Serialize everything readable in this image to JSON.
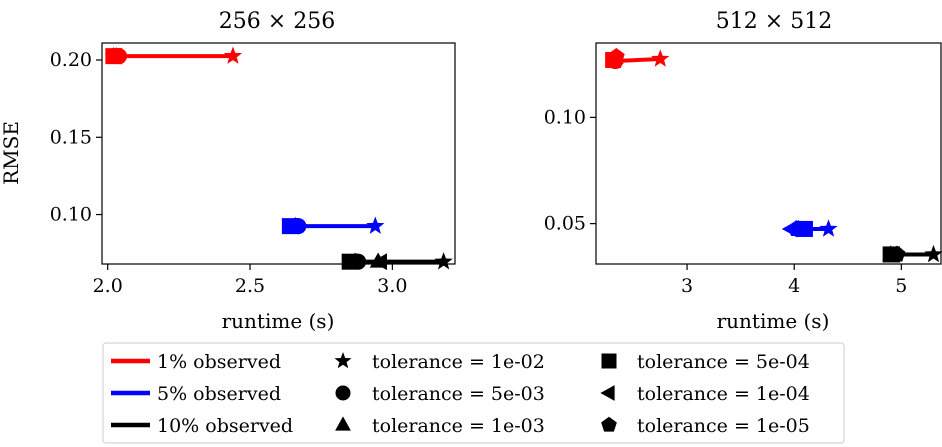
{
  "colors": {
    "1% observed": "#ff0000",
    "5% observed": "#0000ff",
    "10% observed": "#000000"
  },
  "chart_data": [
    {
      "type": "line",
      "title": "256 × 256",
      "xlabel": "runtime (s)",
      "ylabel": "RMSE",
      "xlim": [
        1.98,
        3.22
      ],
      "ylim": [
        0.068,
        0.211
      ],
      "xticks": [
        2.0,
        2.5,
        3.0
      ],
      "xtick_labels": [
        "2.0",
        "2.5",
        "3.0"
      ],
      "yticks": [
        0.1,
        0.15,
        0.2
      ],
      "ytick_labels": [
        "0.10",
        "0.15",
        "0.20"
      ],
      "grid": false,
      "series": [
        {
          "name": "1% observed",
          "points": [
            {
              "tolerance": "1e-02",
              "marker": "star",
              "x": 2.44,
              "y": 0.2025
            },
            {
              "tolerance": "5e-03",
              "marker": "circle",
              "x": 2.04,
              "y": 0.2025
            },
            {
              "tolerance": "1e-03",
              "marker": "triangle",
              "x": 2.03,
              "y": 0.2025
            },
            {
              "tolerance": "5e-04",
              "marker": "square",
              "x": 2.02,
              "y": 0.2025
            },
            {
              "tolerance": "1e-04",
              "marker": "left-triangle",
              "x": 2.03,
              "y": 0.2025
            },
            {
              "tolerance": "1e-05",
              "marker": "pentagon",
              "x": 2.02,
              "y": 0.2025
            }
          ]
        },
        {
          "name": "5% observed",
          "points": [
            {
              "tolerance": "1e-02",
              "marker": "star",
              "x": 2.94,
              "y": 0.0925
            },
            {
              "tolerance": "5e-03",
              "marker": "circle",
              "x": 2.67,
              "y": 0.0925
            },
            {
              "tolerance": "1e-03",
              "marker": "triangle",
              "x": 2.66,
              "y": 0.0925
            },
            {
              "tolerance": "5e-04",
              "marker": "square",
              "x": 2.64,
              "y": 0.0925
            },
            {
              "tolerance": "1e-04",
              "marker": "left-triangle",
              "x": 2.65,
              "y": 0.0925
            },
            {
              "tolerance": "1e-05",
              "marker": "pentagon",
              "x": 2.66,
              "y": 0.0925
            }
          ]
        },
        {
          "name": "10% observed",
          "points": [
            {
              "tolerance": "1e-02",
              "marker": "star",
              "x": 3.18,
              "y": 0.0695
            },
            {
              "tolerance": "5e-03",
              "marker": "circle",
              "x": 2.88,
              "y": 0.0695
            },
            {
              "tolerance": "1e-03",
              "marker": "triangle",
              "x": 2.95,
              "y": 0.0695
            },
            {
              "tolerance": "5e-04",
              "marker": "square",
              "x": 2.85,
              "y": 0.0695
            },
            {
              "tolerance": "1e-04",
              "marker": "left-triangle",
              "x": 2.96,
              "y": 0.0695
            },
            {
              "tolerance": "1e-05",
              "marker": "pentagon",
              "x": 2.87,
              "y": 0.0695
            }
          ]
        }
      ]
    },
    {
      "type": "line",
      "title": "512 × 512",
      "xlabel": "runtime (s)",
      "ylabel": "",
      "xlim": [
        2.15,
        5.37
      ],
      "ylim": [
        0.031,
        0.135
      ],
      "xticks": [
        3,
        4,
        5
      ],
      "xtick_labels": [
        "3",
        "4",
        "5"
      ],
      "yticks": [
        0.05,
        0.1
      ],
      "ytick_labels": [
        "0.05",
        "0.10"
      ],
      "grid": false,
      "series": [
        {
          "name": "1% observed",
          "points": [
            {
              "tolerance": "1e-02",
              "marker": "star",
              "x": 2.75,
              "y": 0.1275
            },
            {
              "tolerance": "5e-03",
              "marker": "circle",
              "x": 2.33,
              "y": 0.1265
            },
            {
              "tolerance": "1e-03",
              "marker": "triangle",
              "x": 2.33,
              "y": 0.128
            },
            {
              "tolerance": "5e-04",
              "marker": "square",
              "x": 2.31,
              "y": 0.127
            },
            {
              "tolerance": "1e-04",
              "marker": "left-triangle",
              "x": 2.32,
              "y": 0.1275
            },
            {
              "tolerance": "1e-05",
              "marker": "pentagon",
              "x": 2.34,
              "y": 0.1285
            }
          ]
        },
        {
          "name": "5% observed",
          "points": [
            {
              "tolerance": "1e-02",
              "marker": "star",
              "x": 4.32,
              "y": 0.0475
            },
            {
              "tolerance": "5e-03",
              "marker": "circle",
              "x": 4.05,
              "y": 0.0475
            },
            {
              "tolerance": "1e-03",
              "marker": "triangle",
              "x": 4.04,
              "y": 0.0475
            },
            {
              "tolerance": "5e-04",
              "marker": "square",
              "x": 4.1,
              "y": 0.0475
            },
            {
              "tolerance": "1e-04",
              "marker": "left-triangle",
              "x": 3.97,
              "y": 0.0475
            },
            {
              "tolerance": "1e-05",
              "marker": "pentagon",
              "x": 4.02,
              "y": 0.0475
            }
          ]
        },
        {
          "name": "10% observed",
          "points": [
            {
              "tolerance": "1e-02",
              "marker": "star",
              "x": 5.3,
              "y": 0.0355
            },
            {
              "tolerance": "5e-03",
              "marker": "circle",
              "x": 4.95,
              "y": 0.0355
            },
            {
              "tolerance": "1e-03",
              "marker": "triangle",
              "x": 4.9,
              "y": 0.0355
            },
            {
              "tolerance": "5e-04",
              "marker": "square",
              "x": 4.9,
              "y": 0.0355
            },
            {
              "tolerance": "1e-04",
              "marker": "left-triangle",
              "x": 4.93,
              "y": 0.0355
            },
            {
              "tolerance": "1e-05",
              "marker": "pentagon",
              "x": 4.96,
              "y": 0.0355
            }
          ]
        }
      ]
    }
  ],
  "legend": {
    "placement": "bottom-center",
    "series_entries": [
      "1% observed",
      "5% observed",
      "10% observed"
    ],
    "marker_entries": [
      {
        "marker": "star",
        "label": "tolerance = 1e-02"
      },
      {
        "marker": "circle",
        "label": "tolerance = 5e-03"
      },
      {
        "marker": "triangle",
        "label": "tolerance = 1e-03"
      },
      {
        "marker": "square",
        "label": "tolerance = 5e-04"
      },
      {
        "marker": "left-triangle",
        "label": "tolerance = 1e-04"
      },
      {
        "marker": "pentagon",
        "label": "tolerance = 1e-05"
      }
    ]
  }
}
